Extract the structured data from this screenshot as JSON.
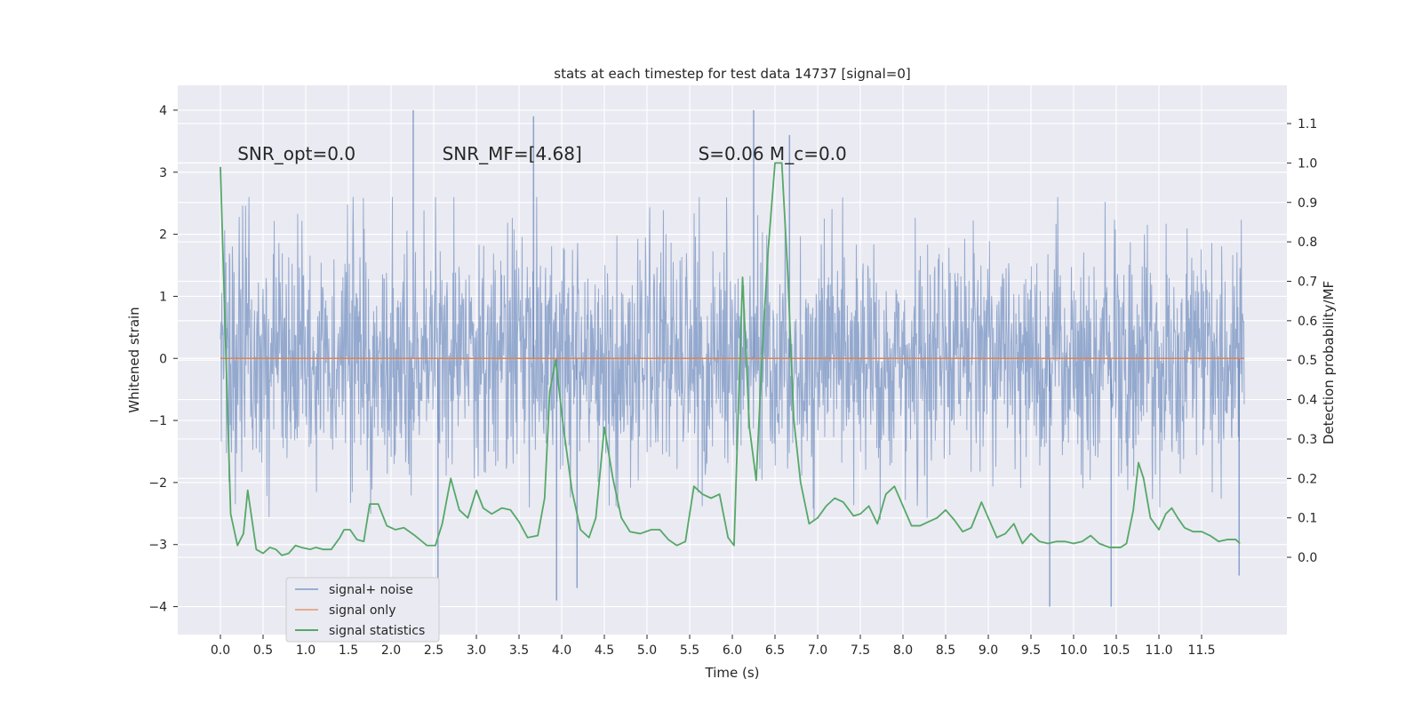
{
  "chart_data": {
    "type": "line",
    "title": "stats at each timestep for test data 14737 [signal=0]",
    "xlabel": "Time (s)",
    "ylabel_left": "Whitened strain",
    "ylabel_right": "Detection probability/MF",
    "xlim": [
      -0.5,
      12.5
    ],
    "ylim_left": [
      -4.45,
      4.4
    ],
    "ylim_right": [
      -0.196,
      1.197
    ],
    "x_ticks": [
      0.0,
      0.5,
      1.0,
      1.5,
      2.0,
      2.5,
      3.0,
      3.5,
      4.0,
      4.5,
      5.0,
      5.5,
      6.0,
      6.5,
      7.0,
      7.5,
      8.0,
      8.5,
      9.0,
      9.5,
      10.0,
      10.5,
      11.0,
      11.5
    ],
    "x_tick_labels": [
      "0.0",
      "0.5",
      "1.0",
      "1.5",
      "2.0",
      "2.5",
      "3.0",
      "3.5",
      "4.0",
      "4.5",
      "5.0",
      "5.5",
      "6.0",
      "6.5",
      "7.0",
      "7.5",
      "8.0",
      "8.5",
      "9.0",
      "9.5",
      "10.0",
      "10.5",
      "11.0",
      "11.5"
    ],
    "y_left_ticks": [
      -4,
      -3,
      -2,
      -1,
      0,
      1,
      2,
      3,
      4
    ],
    "y_left_tick_labels": [
      "−4",
      "−3",
      "−2",
      "−1",
      "0",
      "1",
      "2",
      "3",
      "4"
    ],
    "y_right_ticks": [
      0.0,
      0.1,
      0.2,
      0.3,
      0.4,
      0.5,
      0.6,
      0.7,
      0.8,
      0.9,
      1.0,
      1.1
    ],
    "y_right_tick_labels": [
      "0.0",
      "0.1",
      "0.2",
      "0.3",
      "0.4",
      "0.5",
      "0.6",
      "0.7",
      "0.8",
      "0.9",
      "1.0",
      "1.1"
    ],
    "grid": true,
    "legend_position": "lower-left",
    "annotations": [
      {
        "x": 0.2,
        "y": 3.2,
        "text": "SNR_opt=0.0"
      },
      {
        "x": 2.6,
        "y": 3.2,
        "text": "SNR_MF=[4.68]"
      },
      {
        "x": 5.6,
        "y": 3.2,
        "text": "S=0.06   M_c=0.0"
      }
    ],
    "series": [
      {
        "name": "signal+ noise",
        "axis": "left",
        "color": "#4c72b0",
        "style": "dense noise, approx. +/-1.9 core with spikes to about +/-4",
        "x_range": [
          0.0,
          12.0
        ],
        "peaks": [
          {
            "x": 2.26,
            "y": 4.0
          },
          {
            "x": 3.67,
            "y": 3.9
          },
          {
            "x": 6.25,
            "y": 4.0
          },
          {
            "x": 6.67,
            "y": 3.6
          },
          {
            "x": 3.94,
            "y": -3.9
          },
          {
            "x": 4.18,
            "y": -3.7
          },
          {
            "x": 9.72,
            "y": -4.0
          },
          {
            "x": 10.44,
            "y": -4.0
          },
          {
            "x": 2.55,
            "y": -4.0
          },
          {
            "x": 11.94,
            "y": -3.5
          }
        ]
      },
      {
        "name": "signal only",
        "axis": "left",
        "color": "#dd8452",
        "x": [
          0.0,
          12.0
        ],
        "y": [
          0.0,
          0.0
        ]
      },
      {
        "name": "signal statistics",
        "axis": "right",
        "color": "#55a868",
        "x": [
          0.0,
          0.12,
          0.2,
          0.27,
          0.32,
          0.42,
          0.5,
          0.58,
          0.65,
          0.72,
          0.8,
          0.88,
          0.95,
          1.05,
          1.12,
          1.2,
          1.3,
          1.4,
          1.45,
          1.52,
          1.6,
          1.68,
          1.75,
          1.85,
          1.95,
          2.05,
          2.15,
          2.28,
          2.42,
          2.52,
          2.6,
          2.7,
          2.8,
          2.9,
          3.0,
          3.08,
          3.18,
          3.3,
          3.4,
          3.5,
          3.6,
          3.72,
          3.8,
          3.86,
          3.93,
          4.02,
          4.12,
          4.22,
          4.32,
          4.4,
          4.5,
          4.6,
          4.7,
          4.8,
          4.92,
          5.05,
          5.15,
          5.25,
          5.35,
          5.45,
          5.55,
          5.65,
          5.75,
          5.85,
          5.95,
          6.02,
          6.12,
          6.2,
          6.28,
          6.35,
          6.42,
          6.5,
          6.58,
          6.65,
          6.72,
          6.8,
          6.9,
          7.0,
          7.1,
          7.2,
          7.3,
          7.42,
          7.5,
          7.6,
          7.7,
          7.8,
          7.9,
          8.0,
          8.1,
          8.2,
          8.3,
          8.4,
          8.5,
          8.6,
          8.7,
          8.8,
          8.92,
          9.0,
          9.1,
          9.2,
          9.3,
          9.4,
          9.5,
          9.6,
          9.7,
          9.8,
          9.9,
          10.0,
          10.1,
          10.2,
          10.3,
          10.42,
          10.55,
          10.62,
          10.7,
          10.76,
          10.82,
          10.9,
          11.0,
          11.08,
          11.15,
          11.22,
          11.3,
          11.4,
          11.5,
          11.6,
          11.7,
          11.8,
          11.9,
          11.95
        ],
        "y": [
          0.99,
          0.11,
          0.03,
          0.06,
          0.17,
          0.02,
          0.01,
          0.025,
          0.02,
          0.005,
          0.01,
          0.03,
          0.025,
          0.02,
          0.025,
          0.02,
          0.02,
          0.05,
          0.07,
          0.07,
          0.045,
          0.04,
          0.135,
          0.135,
          0.08,
          0.07,
          0.075,
          0.055,
          0.03,
          0.03,
          0.085,
          0.2,
          0.12,
          0.1,
          0.17,
          0.125,
          0.11,
          0.125,
          0.12,
          0.09,
          0.05,
          0.055,
          0.15,
          0.42,
          0.5,
          0.33,
          0.17,
          0.07,
          0.05,
          0.1,
          0.33,
          0.2,
          0.1,
          0.065,
          0.06,
          0.07,
          0.07,
          0.045,
          0.03,
          0.04,
          0.18,
          0.16,
          0.15,
          0.16,
          0.05,
          0.03,
          0.71,
          0.33,
          0.195,
          0.52,
          0.78,
          1.0,
          1.0,
          0.72,
          0.35,
          0.19,
          0.085,
          0.1,
          0.13,
          0.15,
          0.14,
          0.105,
          0.11,
          0.13,
          0.085,
          0.16,
          0.18,
          0.13,
          0.08,
          0.08,
          0.09,
          0.1,
          0.12,
          0.095,
          0.065,
          0.075,
          0.14,
          0.1,
          0.05,
          0.06,
          0.085,
          0.035,
          0.06,
          0.04,
          0.035,
          0.04,
          0.04,
          0.035,
          0.04,
          0.055,
          0.035,
          0.025,
          0.025,
          0.035,
          0.12,
          0.24,
          0.2,
          0.1,
          0.07,
          0.11,
          0.125,
          0.1,
          0.075,
          0.065,
          0.065,
          0.055,
          0.04,
          0.045,
          0.045,
          0.035
        ]
      }
    ]
  }
}
